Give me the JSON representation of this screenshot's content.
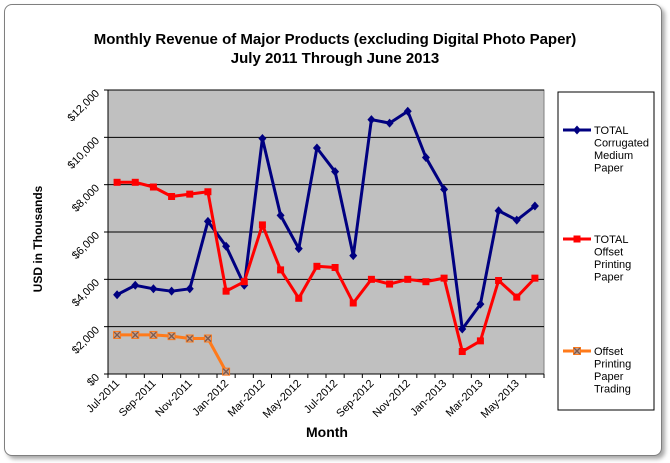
{
  "chart_data": {
    "type": "line",
    "title": "Monthly Revenue of Major Products (excluding Digital Photo Paper)",
    "subtitle": "July 2011 Through June 2013",
    "xlabel": "Month",
    "ylabel": "USD in Thousands",
    "ylim": [
      0,
      12000
    ],
    "yticks": [
      "$0",
      "$2,000",
      "$4,000",
      "$6,000",
      "$8,000",
      "$10,000",
      "$12,000"
    ],
    "xtick_labels": [
      "Jul-2011",
      "Sep-2011",
      "Nov-2011",
      "Jan-2012",
      "Mar-2012",
      "May-2012",
      "Jul-2012",
      "Sep-2012",
      "Nov-2012",
      "Jan-2013",
      "Mar-2013",
      "May-2013"
    ],
    "categories": [
      "Jul-2011",
      "Aug-2011",
      "Sep-2011",
      "Oct-2011",
      "Nov-2011",
      "Dec-2011",
      "Jan-2012",
      "Feb-2012",
      "Mar-2012",
      "Apr-2012",
      "May-2012",
      "Jun-2012",
      "Jul-2012",
      "Aug-2012",
      "Sep-2012",
      "Oct-2012",
      "Nov-2012",
      "Dec-2012",
      "Jan-2013",
      "Feb-2013",
      "Mar-2013",
      "Apr-2013",
      "May-2013",
      "Jun-2013"
    ],
    "grid": true,
    "legend_position": "right",
    "series": [
      {
        "name": "TOTAL Corrugated Medium Paper",
        "legend_lines": [
          "TOTAL",
          "Corrugated",
          "Medium",
          "Paper"
        ],
        "color": "#000080",
        "marker": "diamond",
        "values": [
          3350,
          3750,
          3600,
          3500,
          3600,
          6450,
          5400,
          3750,
          9950,
          6700,
          5300,
          9550,
          8550,
          5000,
          10750,
          10600,
          11100,
          9150,
          7800,
          1900,
          2950,
          6900,
          6500,
          7100
        ]
      },
      {
        "name": "TOTAL Offset Printing Paper",
        "legend_lines": [
          "TOTAL",
          "Offset",
          "Printing",
          "Paper"
        ],
        "color": "#ff0000",
        "marker": "square",
        "values": [
          8100,
          8100,
          7900,
          7500,
          7600,
          7700,
          3500,
          3900,
          6300,
          4400,
          3200,
          4550,
          4500,
          3000,
          4000,
          3800,
          4000,
          3900,
          4050,
          950,
          1400,
          3950,
          3250,
          4050
        ]
      },
      {
        "name": "Offset Printing Paper Trading",
        "legend_lines": [
          "Offset",
          "Printing",
          "Paper",
          "Trading"
        ],
        "color": "#ff7a1a",
        "marker": "x",
        "values": [
          1650,
          1650,
          1650,
          1600,
          1500,
          1500,
          100,
          null,
          null,
          null,
          null,
          null,
          null,
          null,
          null,
          null,
          null,
          null,
          null,
          null,
          null,
          null,
          null,
          null
        ]
      }
    ]
  }
}
